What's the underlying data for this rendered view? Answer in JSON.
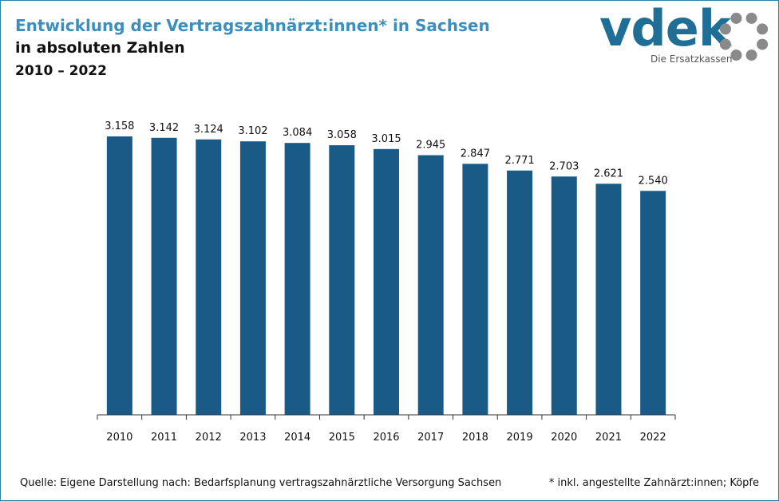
{
  "header": {
    "title": "Entwicklung der Vertragszahnärzt:innen* in Sachsen",
    "subtitle1": "in absoluten Zahlen",
    "subtitle2": "2010 – 2022"
  },
  "logo": {
    "text": "vdek",
    "tagline": "Die Ersatzkassen",
    "color": "#1f6e96",
    "ring_color": "#8a8a8a"
  },
  "footer": {
    "source": "Quelle: Eigene Darstellung nach: Bedarfsplanung vertragszahnärztliche Versorgung Sachsen",
    "note": "* inkl. angestellte Zahnärzt:innen; Köpfe"
  },
  "chart_data": {
    "type": "bar",
    "categories": [
      "2010",
      "2011",
      "2012",
      "2013",
      "2014",
      "2015",
      "2016",
      "2017",
      "2018",
      "2019",
      "2020",
      "2021",
      "2022"
    ],
    "values": [
      3158,
      3142,
      3124,
      3102,
      3084,
      3058,
      3015,
      2945,
      2847,
      2771,
      2703,
      2621,
      2540
    ],
    "labels": [
      "3.158",
      "3.142",
      "3.124",
      "3.102",
      "3.084",
      "3.058",
      "3.015",
      "2.945",
      "2.847",
      "2.771",
      "2.703",
      "2.621",
      "2.540"
    ],
    "bar_color": "#1a5a86",
    "ylim": [
      0,
      3158
    ],
    "grid": false,
    "legend": "none"
  }
}
